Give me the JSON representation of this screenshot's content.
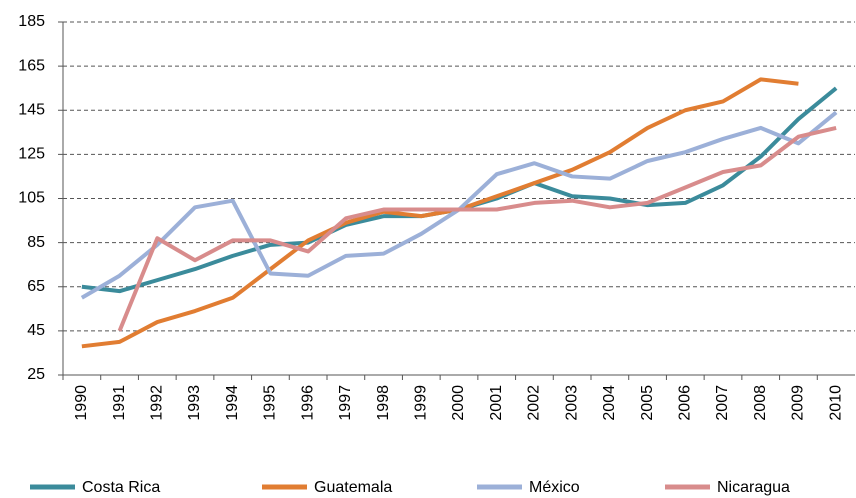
{
  "chart_data": {
    "type": "line",
    "categories": [
      "1990",
      "1991",
      "1992",
      "1993",
      "1994",
      "1995",
      "1996",
      "1997",
      "1998",
      "1999",
      "2000",
      "2001",
      "2002",
      "2003",
      "2004",
      "2005",
      "2006",
      "2007",
      "2008",
      "2009",
      "2010"
    ],
    "series": [
      {
        "name": "Costa Rica",
        "color": "#3b8b9b",
        "values": [
          65,
          63,
          68,
          73,
          79,
          84,
          85,
          93,
          97,
          97,
          100,
          105,
          112,
          106,
          105,
          102,
          103,
          111,
          124,
          141,
          155
        ]
      },
      {
        "name": "Guatemala",
        "color": "#e17d32",
        "values": [
          38,
          40,
          49,
          54,
          60,
          73,
          86,
          94,
          99,
          97,
          100,
          106,
          112,
          118,
          126,
          137,
          145,
          149,
          159,
          157,
          null
        ]
      },
      {
        "name": "México",
        "color": "#9cb0d8",
        "values": [
          60,
          70,
          84,
          101,
          104,
          71,
          70,
          79,
          80,
          89,
          100,
          116,
          121,
          115,
          114,
          122,
          126,
          132,
          137,
          130,
          144
        ]
      },
      {
        "name": "Nicaragua",
        "color": "#d88c8c",
        "values": [
          null,
          45,
          87,
          77,
          86,
          86,
          81,
          96,
          100,
          100,
          100,
          100,
          103,
          104,
          101,
          103,
          110,
          117,
          120,
          133,
          137
        ]
      }
    ],
    "ylim": [
      25,
      185
    ],
    "yticks": [
      25,
      45,
      65,
      85,
      105,
      125,
      145,
      165,
      185
    ],
    "grid": true,
    "legend": "bottom"
  }
}
